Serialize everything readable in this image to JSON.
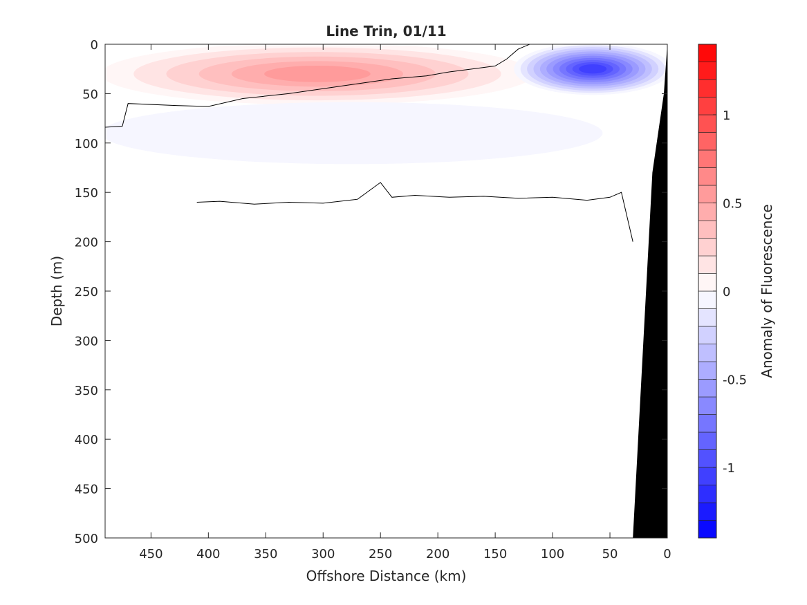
{
  "chart_data": {
    "type": "heatmap",
    "title": "Line Trin, 01/11",
    "xlabel": "Offshore Distance (km)",
    "ylabel": "Depth (m)",
    "colorbar_label": "Anomaly of Fluorescence",
    "xlim": [
      490,
      0
    ],
    "ylim": [
      500,
      0
    ],
    "x_reversed": true,
    "y_reversed": true,
    "x_ticks": [
      "450",
      "400",
      "350",
      "300",
      "250",
      "200",
      "150",
      "100",
      "50",
      "0"
    ],
    "y_ticks": [
      "0",
      "50",
      "100",
      "150",
      "200",
      "250",
      "300",
      "350",
      "400",
      "450",
      "500"
    ],
    "colorbar_ticks": [
      "1",
      "0.5",
      "0",
      "-0.5",
      "-1"
    ],
    "colorbar_range": [
      -1.4,
      1.4
    ],
    "colorbar_levels": 28,
    "colormap": {
      "negative": "#0000ff",
      "zero": "#ffffff",
      "positive": "#ff0000"
    },
    "zero_contour_color": "#000000",
    "bathymetry_color": "#000000",
    "anomaly_regions": [
      {
        "name": "surface positive anomaly",
        "offshore_km": [
          490,
          120
        ],
        "depth_m": [
          0,
          60
        ],
        "peak_value": 0.6
      },
      {
        "name": "nearshore negative anomaly",
        "offshore_km": [
          130,
          0
        ],
        "depth_m": [
          0,
          50
        ],
        "peak_value": -1.05
      },
      {
        "name": "subsurface negative anomaly",
        "offshore_km": [
          490,
          60
        ],
        "depth_m": [
          60,
          120
        ],
        "peak_value": -0.1
      }
    ],
    "zero_contour": [
      {
        "offshore_km": [
          490,
          475,
          470,
          430,
          400,
          370,
          330,
          300,
          270,
          240,
          210,
          190,
          170,
          150,
          140,
          130,
          120
        ],
        "depth_m": [
          84,
          83,
          60,
          62,
          63,
          55,
          50,
          45,
          40,
          35,
          32,
          28,
          25,
          22,
          15,
          5,
          0
        ]
      },
      {
        "offshore_km": [
          410,
          390,
          360,
          330,
          300,
          270,
          250,
          240,
          220,
          190,
          160,
          130,
          100,
          70,
          50,
          40,
          30
        ],
        "depth_m": [
          160,
          159,
          162,
          160,
          161,
          157,
          140,
          155,
          153,
          155,
          154,
          156,
          155,
          158,
          155,
          150,
          200
        ]
      }
    ]
  }
}
